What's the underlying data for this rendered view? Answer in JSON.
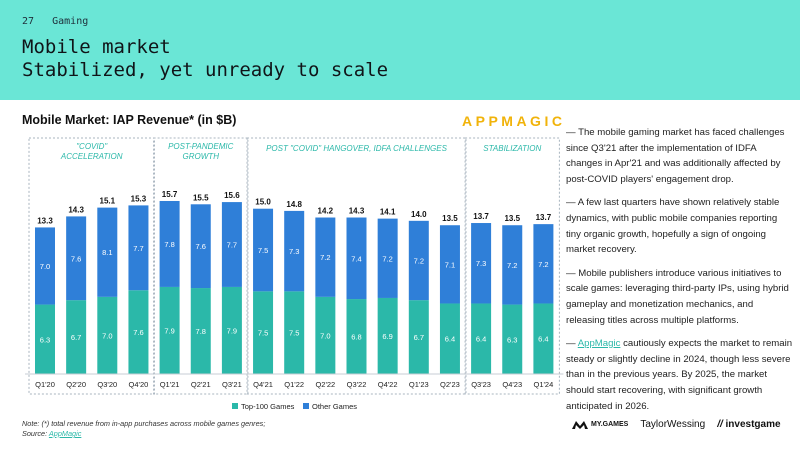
{
  "header": {
    "page_number": "27",
    "section": "Gaming",
    "title_line1": "Mobile market",
    "title_line2": "Stabilized, yet unready to scale"
  },
  "brand_logo": "APPMAGIC",
  "chart_data": {
    "type": "bar",
    "stacked": true,
    "title": "Mobile Market: IAP Revenue* (in $B)",
    "categories": [
      "Q1'20",
      "Q2'20",
      "Q3'20",
      "Q4'20",
      "Q1'21",
      "Q2'21",
      "Q3'21",
      "Q4'21",
      "Q1'22",
      "Q2'22",
      "Q3'22",
      "Q4'22",
      "Q1'23",
      "Q2'23",
      "Q3'23",
      "Q4'23",
      "Q1'24"
    ],
    "series": [
      {
        "name": "Top-100 Games",
        "color": "#2bb8a9",
        "values": [
          6.3,
          6.7,
          7.0,
          7.6,
          7.9,
          7.8,
          7.9,
          7.5,
          7.5,
          7.0,
          6.8,
          6.9,
          6.7,
          6.4,
          6.4,
          6.3,
          6.4
        ]
      },
      {
        "name": "Other Games",
        "color": "#2f7fd8",
        "values": [
          7.0,
          7.6,
          8.1,
          7.7,
          7.8,
          7.6,
          7.7,
          7.5,
          7.3,
          7.2,
          7.4,
          7.2,
          7.2,
          7.1,
          7.3,
          7.2,
          7.2
        ]
      }
    ],
    "totals": [
      13.3,
      14.3,
      15.1,
      15.3,
      15.7,
      15.5,
      15.6,
      15.0,
      14.8,
      14.2,
      14.3,
      14.1,
      14.0,
      13.5,
      13.7,
      13.5,
      13.7
    ],
    "ylim": [
      0,
      17
    ],
    "grid": false,
    "legend_position": "bottom",
    "periods": [
      {
        "label": "\"COVID\" ACCELERATION",
        "start": 0,
        "end": 3
      },
      {
        "label": "POST-PANDEMIC GROWTH",
        "start": 4,
        "end": 6
      },
      {
        "label": "POST \"COVID\" HANGOVER, IDFA CHALLENGES",
        "start": 7,
        "end": 13
      },
      {
        "label": "STABILIZATION",
        "start": 14,
        "end": 16
      }
    ]
  },
  "commentary": {
    "p1": "— The mobile gaming market has faced challenges since Q3'21 after the implementation of IDFA changes in Apr'21 and was additionally affected by post-COVID players' engagement drop.",
    "p2": "— A few last quarters have shown relatively stable dynamics, with public mobile companies reporting tiny organic growth, hopefully a sign of ongoing market recovery.",
    "p3": "— Mobile publishers introduce various initiatives to scale games: leveraging third-party IPs, using hybrid gameplay and monetization mechanics, and releasing titles across multiple platforms.",
    "p4_prefix": "— ",
    "p4_link": "AppMagic",
    "p4_rest": " cautiously expects the market to remain steady or slightly decline in 2024, though less severe than in the previous years. By 2025, the market should start recovering, with significant growth anticipated in 2026."
  },
  "footer": {
    "note": "Note: (*) total revenue from in-app purchases across mobile games genres;",
    "source_prefix": "Source: ",
    "source_link": "AppMagic"
  },
  "logos": {
    "mygames": "MY.GAMES",
    "taylorwessing": "TaylorWessing",
    "investgame": "investgame"
  }
}
